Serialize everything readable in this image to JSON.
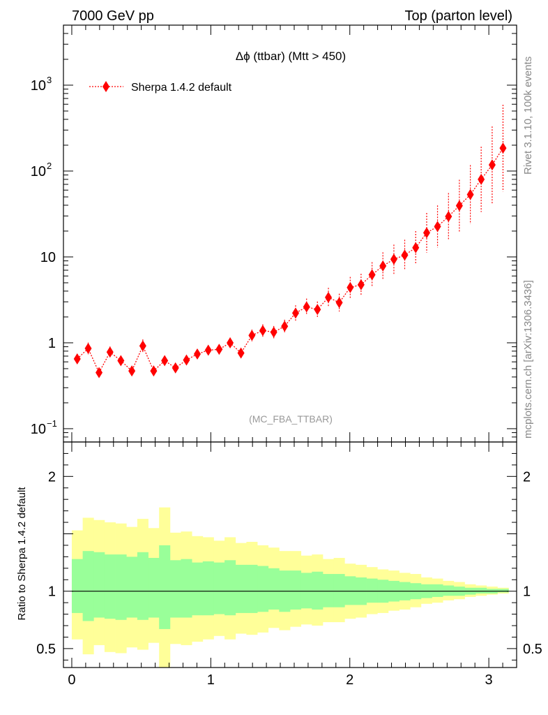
{
  "header": {
    "left": "7000 GeV pp",
    "right": "Top (parton level)"
  },
  "plot_title": "Δϕ (ttbar) (Mtt > 450)",
  "watermark": "(MC_FBA_TTBAR)",
  "side_labels": {
    "rivet": "Rivet 3.1.10,  100k events",
    "mcplots": "mcplots.cern.ch [arXiv:1306.3436]"
  },
  "ratio_ylabel": "Ratio to Sherpa 1.4.2 default",
  "colors": {
    "series": "#ff0000",
    "band_outer": "#ffff99",
    "band_inner": "#99ff99",
    "ref_line": "#000000"
  },
  "chart_data": [
    {
      "type": "scatter",
      "scale": "log",
      "ylim": [
        0.07,
        5000
      ],
      "xlim": [
        -0.06,
        3.2
      ],
      "yticks": [
        {
          "value": 0.1,
          "label": "10",
          "sup": "−1"
        },
        {
          "value": 1,
          "label": "1",
          "sup": ""
        },
        {
          "value": 10,
          "label": "10",
          "sup": ""
        },
        {
          "value": 100,
          "label": "10",
          "sup": "2"
        },
        {
          "value": 1000,
          "label": "10",
          "sup": "3"
        }
      ],
      "legend": "top-left",
      "series": [
        {
          "name": "Sherpa 1.4.2 default",
          "x": [
            0.039,
            0.118,
            0.196,
            0.275,
            0.353,
            0.432,
            0.511,
            0.589,
            0.668,
            0.746,
            0.825,
            0.903,
            0.982,
            1.06,
            1.139,
            1.217,
            1.296,
            1.374,
            1.453,
            1.531,
            1.61,
            1.689,
            1.767,
            1.846,
            1.924,
            2.003,
            2.081,
            2.16,
            2.238,
            2.317,
            2.395,
            2.474,
            2.553,
            2.631,
            2.71,
            2.788,
            2.867,
            2.945,
            3.024,
            3.102
          ],
          "y": [
            0.65,
            0.86,
            0.45,
            0.78,
            0.62,
            0.47,
            0.92,
            0.47,
            0.62,
            0.51,
            0.63,
            0.74,
            0.82,
            0.84,
            1.0,
            0.76,
            1.22,
            1.39,
            1.33,
            1.56,
            2.22,
            2.62,
            2.44,
            3.38,
            2.94,
            4.4,
            4.75,
            6.2,
            7.85,
            9.4,
            10.5,
            12.8,
            19.1,
            22.6,
            29.6,
            39.5,
            53.2,
            80.0,
            118,
            185
          ],
          "yerr": [
            0.14,
            0.17,
            0.11,
            0.16,
            0.14,
            0.12,
            0.19,
            0.12,
            0.14,
            0.12,
            0.12,
            0.13,
            0.13,
            0.14,
            0.15,
            0.14,
            0.17,
            0.18,
            0.18,
            0.19,
            0.23,
            0.25,
            0.24,
            0.29,
            0.27,
            0.33,
            0.34,
            0.4,
            0.44,
            0.48,
            0.51,
            0.56,
            0.7,
            0.76,
            0.87,
            1.0,
            1.2,
            1.4,
            1.8,
            2.2
          ]
        }
      ]
    },
    {
      "type": "area",
      "ylabel": "Ratio to Sherpa 1.4.2 default",
      "xlim": [
        -0.06,
        3.2
      ],
      "ylim": [
        0.335,
        2.3
      ],
      "yticks": [
        0.5,
        1,
        2
      ],
      "xticks": [
        0,
        1,
        2,
        3
      ],
      "reference": 1,
      "bin_edges": [
        0,
        0.0785,
        0.157,
        0.2355,
        0.314,
        0.3925,
        0.471,
        0.5495,
        0.628,
        0.7065,
        0.785,
        0.8635,
        0.942,
        1.0205,
        1.099,
        1.1775,
        1.256,
        1.3345,
        1.413,
        1.4915,
        1.57,
        1.6485,
        1.727,
        1.8055,
        1.884,
        1.9625,
        2.041,
        2.1195,
        2.198,
        2.2765,
        2.355,
        2.4335,
        2.512,
        2.5905,
        2.669,
        2.7475,
        2.826,
        2.9045,
        2.983,
        3.0615,
        3.1416
      ],
      "outer_low": [
        0.58,
        0.45,
        0.53,
        0.47,
        0.46,
        0.51,
        0.49,
        0.55,
        0.3,
        0.54,
        0.53,
        0.56,
        0.58,
        0.61,
        0.58,
        0.63,
        0.62,
        0.64,
        0.68,
        0.66,
        0.69,
        0.71,
        0.7,
        0.73,
        0.73,
        0.76,
        0.77,
        0.8,
        0.81,
        0.83,
        0.84,
        0.86,
        0.89,
        0.9,
        0.92,
        0.93,
        0.95,
        0.96,
        0.97,
        0.98
      ],
      "outer_high": [
        1.53,
        1.64,
        1.62,
        1.6,
        1.59,
        1.56,
        1.63,
        1.55,
        1.73,
        1.51,
        1.52,
        1.48,
        1.47,
        1.44,
        1.47,
        1.42,
        1.43,
        1.4,
        1.38,
        1.35,
        1.35,
        1.31,
        1.32,
        1.28,
        1.29,
        1.24,
        1.23,
        1.21,
        1.19,
        1.18,
        1.16,
        1.15,
        1.12,
        1.11,
        1.09,
        1.08,
        1.06,
        1.05,
        1.04,
        1.03
      ],
      "inner_low": [
        0.81,
        0.74,
        0.77,
        0.76,
        0.75,
        0.77,
        0.75,
        0.77,
        0.67,
        0.77,
        0.77,
        0.79,
        0.79,
        0.8,
        0.79,
        0.81,
        0.81,
        0.82,
        0.84,
        0.82,
        0.84,
        0.85,
        0.84,
        0.86,
        0.86,
        0.88,
        0.88,
        0.9,
        0.9,
        0.91,
        0.92,
        0.93,
        0.94,
        0.95,
        0.96,
        0.96,
        0.97,
        0.98,
        0.98,
        0.99
      ],
      "inner_high": [
        1.28,
        1.35,
        1.34,
        1.32,
        1.32,
        1.3,
        1.34,
        1.29,
        1.4,
        1.27,
        1.28,
        1.25,
        1.26,
        1.25,
        1.27,
        1.23,
        1.23,
        1.22,
        1.2,
        1.18,
        1.18,
        1.16,
        1.17,
        1.15,
        1.15,
        1.13,
        1.12,
        1.11,
        1.1,
        1.09,
        1.08,
        1.07,
        1.06,
        1.06,
        1.05,
        1.04,
        1.03,
        1.03,
        1.02,
        1.02
      ]
    }
  ]
}
